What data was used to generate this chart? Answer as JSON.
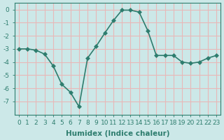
{
  "x": [
    0,
    1,
    2,
    3,
    4,
    5,
    6,
    7,
    8,
    9,
    10,
    11,
    12,
    13,
    14,
    15,
    16,
    17,
    18,
    19,
    20,
    21,
    22,
    23
  ],
  "y": [
    -3.0,
    -3.0,
    -3.1,
    -3.4,
    -4.3,
    -5.7,
    -6.3,
    -7.4,
    -3.7,
    -2.8,
    -1.8,
    -0.85,
    -0.05,
    -0.05,
    -0.2,
    -1.6,
    -3.5,
    -3.5,
    -3.5,
    -4.0,
    -4.1,
    -4.0,
    -3.7,
    -3.5
  ],
  "line_color": "#2e7d6e",
  "marker": "D",
  "marker_size": 3,
  "bg_color": "#cce8e8",
  "grid_color": "#e8b8b8",
  "xlabel": "Humidex (Indice chaleur)",
  "ylabel": "",
  "xlim": [
    -0.5,
    23.5
  ],
  "ylim": [
    -8.0,
    0.5
  ],
  "yticks": [
    0,
    -1,
    -2,
    -3,
    -4,
    -5,
    -6,
    -7
  ],
  "xticks": [
    0,
    1,
    2,
    3,
    4,
    5,
    6,
    7,
    8,
    9,
    10,
    11,
    12,
    13,
    14,
    15,
    16,
    17,
    18,
    19,
    20,
    21,
    22,
    23
  ],
  "title_fontsize": 9,
  "axis_fontsize": 7.5,
  "tick_fontsize": 6.5
}
